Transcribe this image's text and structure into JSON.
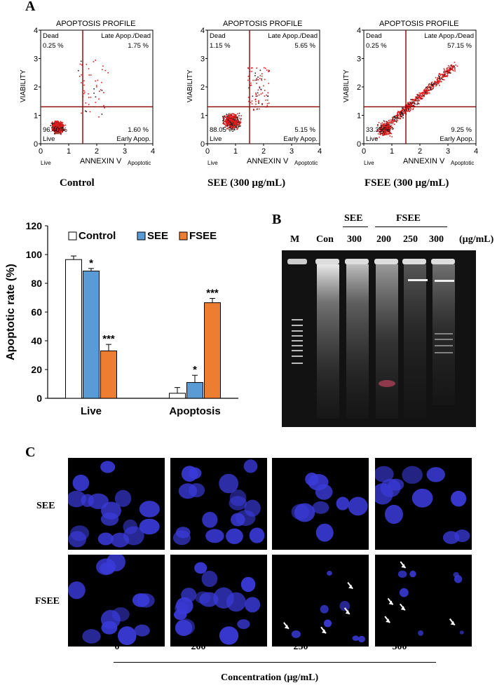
{
  "panels": {
    "a": "A",
    "b": "B",
    "c": "C"
  },
  "flow": [
    {
      "title": "APOPTOSIS PROFILE",
      "caption": "Control",
      "y_axis_label": "VIABILITY",
      "x_axis_label": "ANNEXIN V",
      "x_left_label": "Live",
      "x_right_label": "Apoptotic",
      "quadrants": {
        "ul_name": "Dead",
        "ul_value": "0.25 %",
        "ur_name": "Late Apop./Dead",
        "ur_value": "1.75 %",
        "ll_name": "Live",
        "ll_value": "96.40 %",
        "lr_name": "Early Apop.",
        "lr_value": "1.60 %"
      }
    },
    {
      "title": "APOPTOSIS PROFILE",
      "caption": "SEE (300 µg/mL)",
      "y_axis_label": "VIABILITY",
      "x_axis_label": "ANNEXIN V",
      "x_left_label": "Live",
      "x_right_label": "Apoptotic",
      "quadrants": {
        "ul_name": "Dead",
        "ul_value": "1.15 %",
        "ur_name": "Late Apop./Dead",
        "ur_value": "5.65 %",
        "ll_name": "Live",
        "ll_value": "88.05 %",
        "lr_name": "Early Apop.",
        "lr_value": "5.15 %"
      }
    },
    {
      "title": "APOPTOSIS PROFILE",
      "caption": "FSEE (300 µg/mL)",
      "y_axis_label": "VIABILITY",
      "x_axis_label": "ANNEXIN V",
      "x_left_label": "Live",
      "x_right_label": "Apoptotic",
      "quadrants": {
        "ul_name": "Dead",
        "ul_value": "0.25 %",
        "ur_name": "Late Apop./Dead",
        "ur_value": "57.15 %",
        "ll_name": "Live",
        "ll_value": "33.35 %",
        "lr_name": "Early Apop.",
        "lr_value": "9.25 %"
      }
    }
  ],
  "chart_data": {
    "type": "bar",
    "ylabel": "Apoptotic rate (%)",
    "xlabel": "",
    "ylim": [
      0,
      120
    ],
    "yticks": [
      "0",
      "20",
      "40",
      "60",
      "80",
      "100",
      "120"
    ],
    "categories": [
      "Live",
      "Apoptosis"
    ],
    "legend_position": "top",
    "series": [
      {
        "name": "Control",
        "color": "#ffffff",
        "values": [
          96.5,
          3.5
        ],
        "errors": [
          2.5,
          4.0
        ],
        "sig": [
          "",
          ""
        ]
      },
      {
        "name": "SEE",
        "color": "#5b9bd5",
        "values": [
          88.5,
          11.0
        ],
        "errors": [
          1.8,
          5.0
        ],
        "sig": [
          "*",
          "*"
        ]
      },
      {
        "name": "FSEE",
        "color": "#ed7d31",
        "values": [
          33.0,
          66.5
        ],
        "errors": [
          4.5,
          3.0
        ],
        "sig": [
          "***",
          "***"
        ]
      }
    ]
  },
  "gel": {
    "group_see": "SEE",
    "group_fsee": "FSEE",
    "lanes": [
      "M",
      "Con",
      "300",
      "200",
      "250",
      "300"
    ],
    "unit": "(µg/mL)"
  },
  "micro": {
    "rows": [
      "SEE",
      "FSEE"
    ],
    "concentrations": [
      "0",
      "200",
      "250",
      "300"
    ],
    "axis_label": "Concentration (µg/mL)",
    "nucleus_color": "#3a3ad8"
  }
}
